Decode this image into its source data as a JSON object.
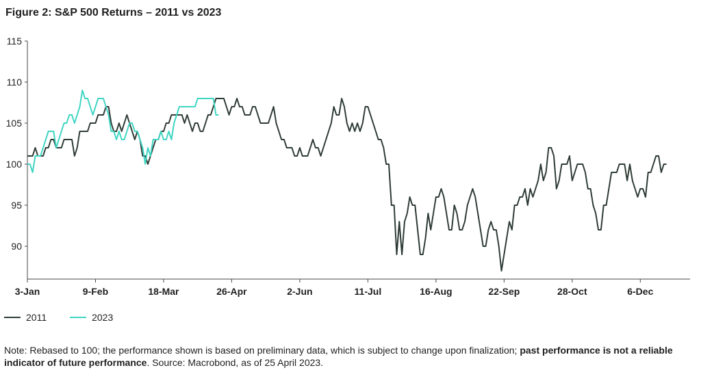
{
  "figure": {
    "title": "Figure 2: S&P 500 Returns – 2011 vs 2023",
    "note_prefix": "Note: Rebased to 100; the performance shown is based on preliminary data, which is subject to change upon finalization; ",
    "note_bold": "past performance is not a reliable indicator of future performance",
    "note_suffix": ". Source: Macrobond, as of 25 April 2023."
  },
  "chart_data": {
    "type": "line",
    "xlim": [
      0,
      253
    ],
    "ylim": [
      86,
      115
    ],
    "yticks": [
      90,
      95,
      100,
      105,
      110,
      115
    ],
    "xticks": [
      {
        "label": "3-Jan",
        "index": 0
      },
      {
        "label": "9-Feb",
        "index": 26
      },
      {
        "label": "18-Mar",
        "index": 52
      },
      {
        "label": "26-Apr",
        "index": 78
      },
      {
        "label": "2-Jun",
        "index": 104
      },
      {
        "label": "11-Jul",
        "index": 130
      },
      {
        "label": "16-Aug",
        "index": 156
      },
      {
        "label": "22-Sep",
        "index": 182
      },
      {
        "label": "28-Oct",
        "index": 208
      },
      {
        "label": "6-Dec",
        "index": 234
      }
    ],
    "legend_position": "bottom-left",
    "grid": false,
    "series": [
      {
        "name": "2011",
        "color": "#2e3b35",
        "values": [
          101,
          101,
          101,
          102,
          101,
          101,
          101,
          102,
          102,
          103,
          103,
          102,
          102,
          102,
          103,
          103,
          103,
          103,
          101,
          102,
          104,
          104,
          104,
          104,
          105,
          105,
          105,
          106,
          106,
          106,
          107,
          107,
          105,
          104,
          104,
          105,
          104,
          105,
          106,
          105,
          104,
          103,
          104,
          103,
          101,
          101,
          100,
          101,
          102,
          103,
          103,
          104,
          104,
          105,
          105,
          106,
          106,
          106,
          106,
          106,
          105,
          106,
          105,
          104,
          105,
          105,
          104,
          104,
          105,
          106,
          106,
          107,
          108,
          108,
          108,
          108,
          107,
          106,
          107,
          107,
          108,
          107,
          107,
          106,
          106,
          106,
          107,
          107,
          106,
          105,
          105,
          105,
          105,
          106,
          107,
          105,
          104,
          103,
          103,
          102,
          102,
          102,
          101,
          101,
          102,
          101,
          101,
          101,
          102,
          103,
          102,
          102,
          101,
          102,
          103,
          104,
          105,
          107,
          106,
          106,
          108,
          107,
          105,
          104,
          105,
          104,
          105,
          104,
          105,
          107,
          107,
          106,
          105,
          104,
          103,
          103,
          102,
          100,
          100,
          95,
          95,
          89,
          93,
          89,
          93,
          94,
          96,
          95,
          95,
          92,
          89,
          89,
          91,
          94,
          92,
          94,
          96,
          96,
          97,
          96,
          94,
          92,
          92,
          95,
          94,
          92,
          92,
          93,
          95,
          96,
          97,
          96,
          94,
          92,
          90,
          90,
          92,
          93,
          92,
          92,
          90,
          87,
          89,
          91,
          93,
          92,
          95,
          95,
          96,
          96,
          97,
          95,
          97,
          96,
          97,
          98,
          100,
          98,
          99,
          102,
          102,
          101,
          97,
          98,
          100,
          100,
          100,
          101,
          98,
          99,
          100,
          100,
          100,
          99,
          97,
          97,
          95,
          94,
          92,
          92,
          95,
          95,
          97,
          99,
          99,
          99,
          100,
          100,
          100,
          98,
          100,
          98,
          97,
          96,
          97,
          97,
          96,
          99,
          99,
          100,
          101,
          101,
          99,
          100,
          100
        ]
      },
      {
        "name": "2023",
        "color": "#3ed5c2",
        "values": [
          100,
          100,
          99,
          101,
          101,
          101,
          102,
          103,
          104,
          104,
          104,
          102,
          103,
          104,
          105,
          105,
          106,
          106,
          105,
          106,
          107,
          109,
          108,
          108,
          107,
          106,
          107,
          108,
          108,
          108,
          107,
          106,
          104,
          104,
          103,
          104,
          103,
          103,
          104,
          105,
          105,
          104,
          104,
          103,
          102,
          100,
          102,
          101,
          103,
          103,
          103,
          104,
          103,
          103,
          104,
          103,
          105,
          106,
          107,
          107,
          107,
          107,
          107,
          107,
          107,
          108,
          108,
          108,
          108,
          108,
          108,
          108,
          106,
          106
        ]
      }
    ]
  }
}
